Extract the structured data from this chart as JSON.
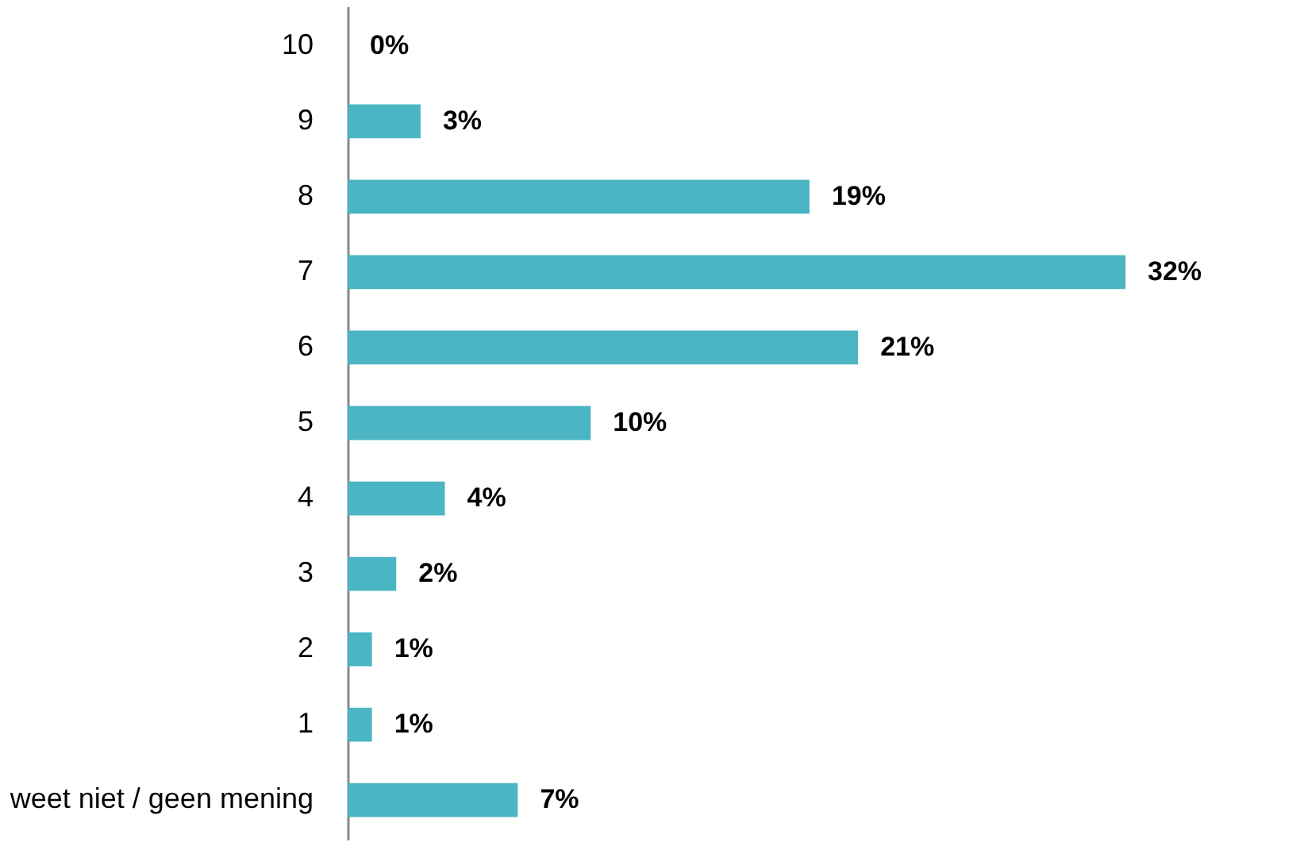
{
  "chart_data": {
    "type": "bar",
    "orientation": "horizontal",
    "categories": [
      "10",
      "9",
      "8",
      "7",
      "6",
      "5",
      "4",
      "3",
      "2",
      "1",
      "weet niet / geen mening"
    ],
    "values": [
      0,
      3,
      19,
      32,
      21,
      10,
      4,
      2,
      1,
      1,
      7
    ],
    "value_labels": [
      "0%",
      "3%",
      "19%",
      "32%",
      "21%",
      "10%",
      "4%",
      "2%",
      "1%",
      "1%",
      "7%"
    ],
    "color": "#4bb5c4",
    "grid": false
  }
}
